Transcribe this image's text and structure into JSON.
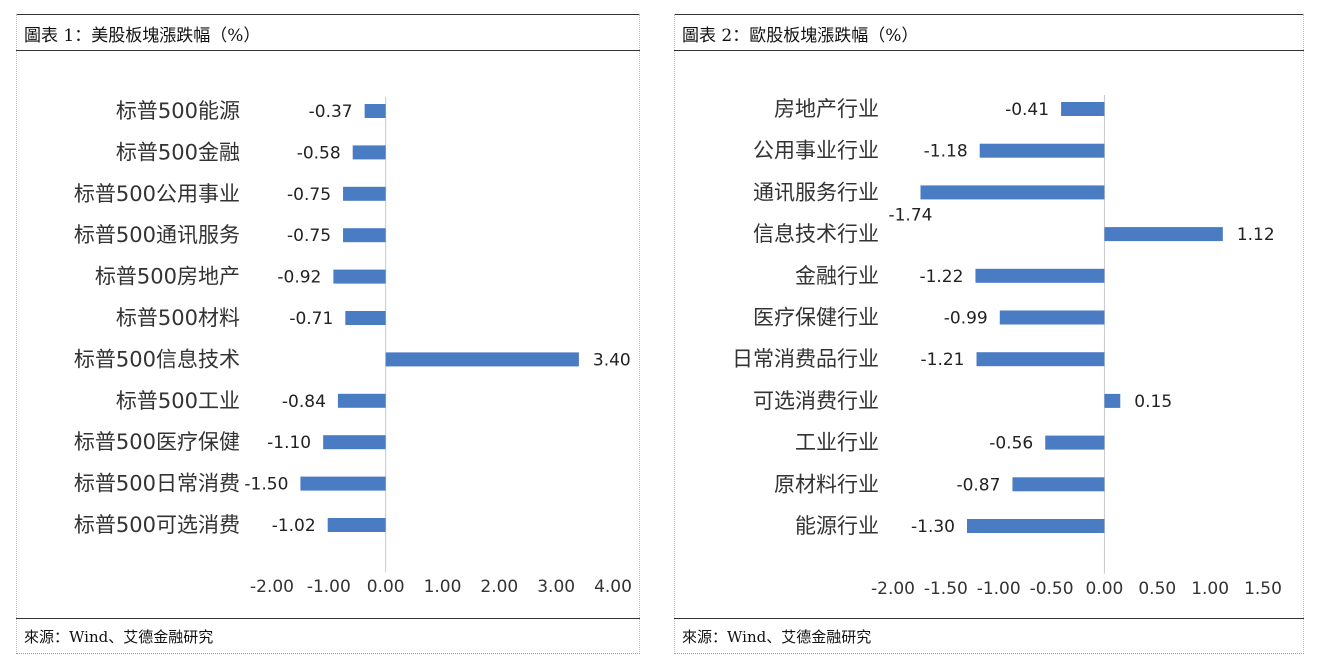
{
  "charts": [
    {
      "title": "圖表 1：美股板塊漲跌幅（%）",
      "source": "來源：Wind、艾德金融研究",
      "chart_data": {
        "type": "bar",
        "orientation": "horizontal",
        "categories": [
          "标普500能源",
          "标普500金融",
          "标普500公用事业",
          "标普500通讯服务",
          "标普500房地产",
          "标普500材料",
          "标普500信息技术",
          "标普500工业",
          "标普500医疗保健",
          "标普500日常消费",
          "标普500可选消费"
        ],
        "values": [
          -0.37,
          -0.58,
          -0.75,
          -0.75,
          -0.92,
          -0.71,
          3.4,
          -0.84,
          -1.1,
          -1.5,
          -1.02
        ],
        "data_labels": [
          "-0.37",
          "-0.58",
          "-0.75",
          "-0.75",
          "-0.92",
          "-0.71",
          "3.40",
          "-0.84",
          "-1.10",
          "-1.50",
          "-1.02"
        ],
        "x_ticks": [
          "-2.00",
          "-1.00",
          "0.00",
          "1.00",
          "2.00",
          "3.00",
          "4.00"
        ],
        "xlim": [
          -2,
          4
        ],
        "bar_color": "#4a7cc4",
        "grid": false
      }
    },
    {
      "title": "圖表 2：歐股板塊漲跌幅（%）",
      "source": "來源：Wind、艾德金融研究",
      "chart_data": {
        "type": "bar",
        "orientation": "horizontal",
        "categories": [
          "房地产行业",
          "公用事业行业",
          "通讯服务行业",
          "信息技术行业",
          "金融行业",
          "医疗保健行业",
          "日常消费品行业",
          "可选消费行业",
          "工业行业",
          "原材料行业",
          "能源行业"
        ],
        "values": [
          -0.41,
          -1.18,
          -1.74,
          1.12,
          -1.22,
          -0.99,
          -1.21,
          0.15,
          -0.56,
          -0.87,
          -1.3
        ],
        "data_labels": [
          "-0.41",
          "-1.18",
          "-1.74",
          "1.12",
          "-1.22",
          "-0.99",
          "-1.21",
          "0.15",
          "-0.56",
          "-0.87",
          "-1.30"
        ],
        "x_ticks": [
          "-2.00",
          "-1.50",
          "-1.00",
          "-0.50",
          "0.00",
          "0.50",
          "1.00",
          "1.50"
        ],
        "xlim": [
          -2,
          1.5
        ],
        "bar_color": "#4a7cc4",
        "grid": false
      }
    }
  ]
}
